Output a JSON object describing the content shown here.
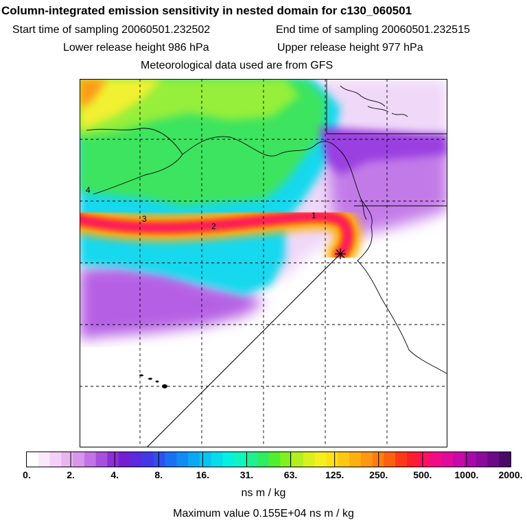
{
  "header": {
    "title": "Column-integrated emission sensitivity in nested domain for c130_060501",
    "start_time": "Start time of sampling 20060501.232502",
    "end_time": "End time of sampling 20060501.232515",
    "lower_height": "Lower release height  986 hPa",
    "upper_height": "Upper release height  977 hPa",
    "met_data": "Meteorological data used are from GFS"
  },
  "plume_labels": [
    "1",
    "2",
    "3",
    "4"
  ],
  "colorbar": {
    "ticks": [
      "0.",
      "2.",
      "4.",
      "8.",
      "16.",
      "31.",
      "63.",
      "125.",
      "250.",
      "500.",
      "1000.",
      "2000."
    ],
    "colors": [
      "#ffffff",
      "#fbe9fb",
      "#f3d0f5",
      "#e8b5ef",
      "#d796ea",
      "#c272e4",
      "#a94fdc",
      "#8c2fd6",
      "#7020d0",
      "#5a2ae0",
      "#4438e6",
      "#3050ee",
      "#1a70f2",
      "#108cf4",
      "#0aa8f2",
      "#08c4ee",
      "#06dcea",
      "#04f0e2",
      "#10f4c0",
      "#20f090",
      "#30ec60",
      "#50ee30",
      "#80f020",
      "#b0f020",
      "#d8f020",
      "#f4f020",
      "#fde018",
      "#fdc814",
      "#fdb010",
      "#fd9810",
      "#fd7e10",
      "#fd6012",
      "#fd3a18",
      "#fd1e30",
      "#fd1260",
      "#f20a86",
      "#e00a9c",
      "#c80aa8",
      "#a80aa8",
      "#8a0a9c",
      "#6a0a88",
      "#4a0a6a"
    ],
    "units": "ns m / kg",
    "max_value": "Maximum value  0.155E+04 ns m / kg"
  },
  "colors": {
    "green": "#3fe35f",
    "light_green": "#92ef3c",
    "cyan": "#13e0f0",
    "yellow": "#f2f030",
    "orange": "#fd9a16",
    "magenta": "#fd1580",
    "purple": "#b860e6",
    "lavender": "#ecd4f6"
  }
}
